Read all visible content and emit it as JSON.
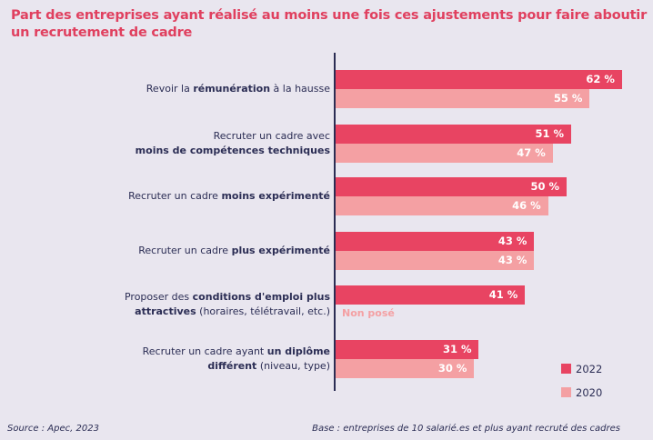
{
  "chart_data": {
    "type": "bar",
    "orientation": "horizontal",
    "title": "Part des entreprises ayant réalisé au moins une fois ces ajustements pour faire aboutir un recrutement de cadre",
    "categories": [
      [
        [
          {
            "t": "Revoir la "
          },
          {
            "t": "rémunération",
            "b": true
          },
          {
            "t": " à la hausse"
          }
        ]
      ],
      [
        [
          {
            "t": "Recruter un cadre avec"
          }
        ],
        [
          {
            "t": "moins de compétences techniques",
            "b": true
          }
        ]
      ],
      [
        [
          {
            "t": "Recruter un cadre "
          },
          {
            "t": "moins expérimenté",
            "b": true
          }
        ]
      ],
      [
        [
          {
            "t": "Recruter un cadre "
          },
          {
            "t": "plus expérimenté",
            "b": true
          }
        ]
      ],
      [
        [
          {
            "t": "Proposer des "
          },
          {
            "t": "conditions d'emploi plus",
            "b": true
          }
        ],
        [
          {
            "t": "attractives",
            "b": true
          },
          {
            "t": " (horaires, télétravail, etc.)"
          }
        ]
      ],
      [
        [
          {
            "t": "Recruter un cadre ayant "
          },
          {
            "t": "un diplôme",
            "b": true
          }
        ],
        [
          {
            "t": "différent",
            "b": true
          },
          {
            "t": " (niveau, type)"
          }
        ]
      ]
    ],
    "series": [
      {
        "name": "2022",
        "color": "#e84462",
        "values": [
          62,
          51,
          50,
          43,
          41,
          31
        ],
        "labels": [
          "62 %",
          "51 %",
          "50 %",
          "43 %",
          "41 %",
          "31 %"
        ]
      },
      {
        "name": "2020",
        "color": "#f4a0a3",
        "values": [
          55,
          47,
          46,
          43,
          null,
          30
        ],
        "labels": [
          "55 %",
          "47 %",
          "46 %",
          "43 %",
          "Non posé",
          "30 %"
        ]
      }
    ],
    "xlim": [
      0,
      70
    ],
    "grid": false,
    "legend": "bottom-right"
  },
  "footer": {
    "source": "Source : Apec, 2023",
    "base": "Base : entreprises de 10 salarié.es et plus ayant recruté des cadres"
  }
}
